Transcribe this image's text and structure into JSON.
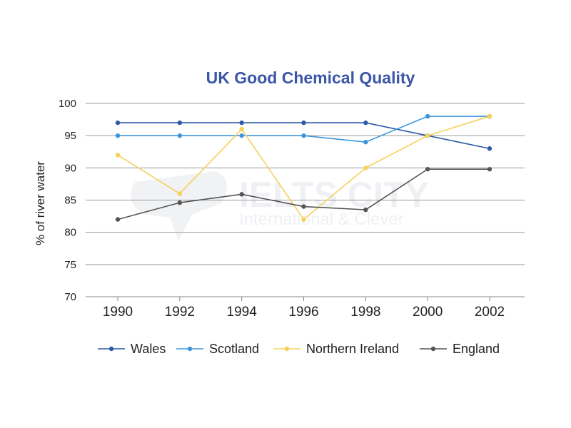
{
  "chart_data": {
    "type": "line",
    "title": "UK Good Chemical Quality",
    "xlabel": "",
    "ylabel": "% of river water",
    "categories": [
      "1990",
      "1992",
      "1994",
      "1996",
      "1998",
      "2000",
      "2002"
    ],
    "ylim": [
      70,
      100
    ],
    "yticks": [
      70,
      75,
      80,
      85,
      90,
      95,
      100
    ],
    "grid": true,
    "legend_position": "bottom",
    "series": [
      {
        "name": "Wales",
        "color": "#2e5aa8",
        "values": [
          97,
          97,
          97,
          97,
          97,
          95,
          93
        ]
      },
      {
        "name": "Scotland",
        "color": "#3c96dc",
        "values": [
          95,
          95,
          95,
          95,
          94,
          98,
          98
        ]
      },
      {
        "name": "Northern Ireland",
        "color": "#f5d15c",
        "values": [
          92,
          86,
          96,
          82,
          90,
          95,
          98
        ]
      },
      {
        "name": "England",
        "color": "#555555",
        "values": [
          82,
          84.6,
          85.9,
          84,
          83.5,
          89.8,
          89.8
        ]
      }
    ]
  },
  "watermark": {
    "main": "IELTS CITY",
    "sub": "International & Clever"
  }
}
